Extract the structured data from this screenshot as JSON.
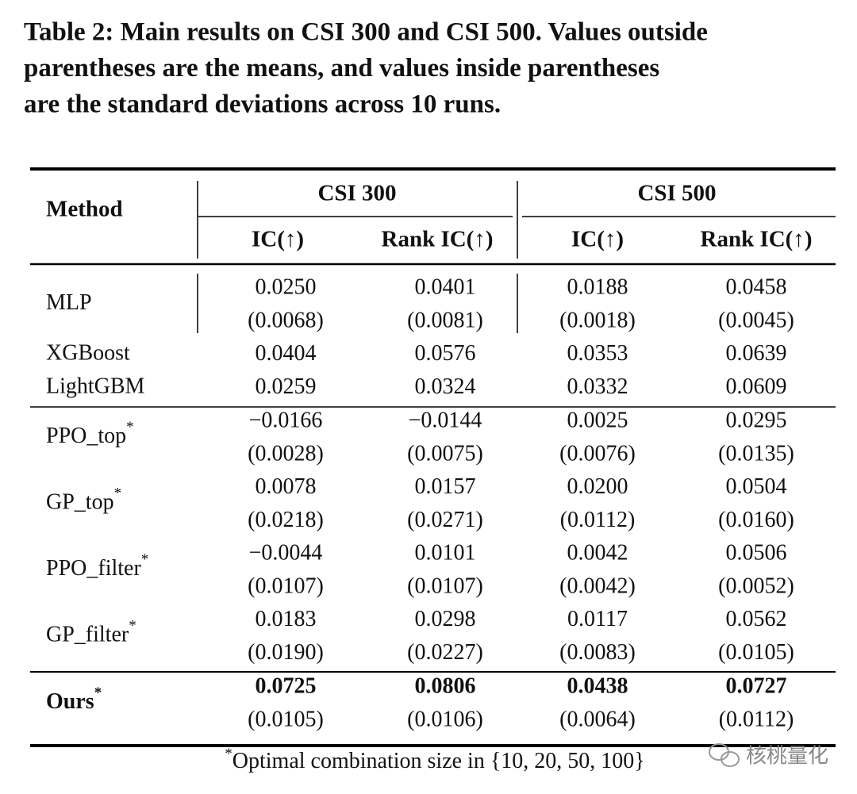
{
  "caption": [
    "Table 2: Main results on CSI 300 and CSI 500. Values outside",
    "parentheses are the means, and values inside parentheses",
    "are the standard deviations across 10 runs."
  ],
  "table": {
    "header": {
      "method": "Method",
      "groups": [
        "CSI 300",
        "CSI 500"
      ],
      "metrics": [
        "IC(↑)",
        "Rank IC(↑)",
        "IC(↑)",
        "Rank IC(↑)"
      ]
    },
    "sections": [
      [
        {
          "method": "MLP",
          "mark": null,
          "means": [
            "0.0250",
            "0.0401",
            "0.0188",
            "0.0458"
          ],
          "stds": [
            "(0.0068)",
            "(0.0081)",
            "(0.0018)",
            "(0.0045)"
          ]
        },
        {
          "method": "XGBoost",
          "mark": null,
          "means": [
            "0.0404",
            "0.0576",
            "0.0353",
            "0.0639"
          ],
          "stds": null
        },
        {
          "method": "LightGBM",
          "mark": null,
          "means": [
            "0.0259",
            "0.0324",
            "0.0332",
            "0.0609"
          ],
          "stds": null
        }
      ],
      [
        {
          "method": "PPO_top",
          "mark": "*",
          "means": [
            "−0.0166",
            "−0.0144",
            "0.0025",
            "0.0295"
          ],
          "stds": [
            "(0.0028)",
            "(0.0075)",
            "(0.0076)",
            "(0.0135)"
          ]
        },
        {
          "method": "GP_top",
          "mark": "*",
          "means": [
            "0.0078",
            "0.0157",
            "0.0200",
            "0.0504"
          ],
          "stds": [
            "(0.0218)",
            "(0.0271)",
            "(0.0112)",
            "(0.0160)"
          ]
        },
        {
          "method": "PPO_filter",
          "mark": "*",
          "means": [
            "−0.0044",
            "0.0101",
            "0.0042",
            "0.0506"
          ],
          "stds": [
            "(0.0107)",
            "(0.0107)",
            "(0.0042)",
            "(0.0052)"
          ]
        },
        {
          "method": "GP_filter",
          "mark": "*",
          "means": [
            "0.0183",
            "0.0298",
            "0.0117",
            "0.0562"
          ],
          "stds": [
            "(0.0190)",
            "(0.0227)",
            "(0.0083)",
            "(0.0105)"
          ]
        }
      ],
      [
        {
          "method": "Ours",
          "mark": "*",
          "means": [
            "0.0725",
            "0.0806",
            "0.0438",
            "0.0727"
          ],
          "stds": [
            "(0.0105)",
            "(0.0106)",
            "(0.0064)",
            "(0.0112)"
          ]
        }
      ]
    ]
  },
  "footnote": {
    "mark": "*",
    "text": "Optimal combination size in {10, 20, 50, 100}"
  },
  "watermark": "核桃量化"
}
